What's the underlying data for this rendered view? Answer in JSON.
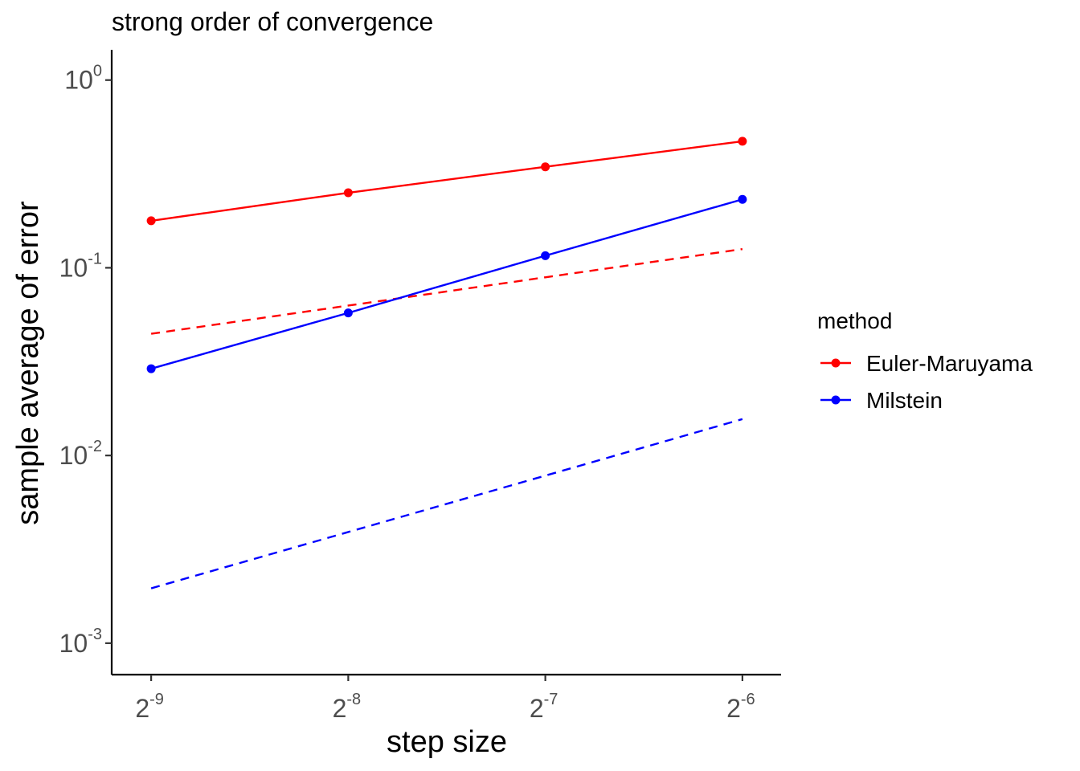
{
  "chart_data": {
    "type": "line",
    "title": "strong order of convergence",
    "xlabel": "step size",
    "ylabel": "sample average of error",
    "x_scale": "log2",
    "y_scale": "log10",
    "x": [
      0.001953125,
      0.00390625,
      0.0078125,
      0.015625
    ],
    "x_ticks": [
      {
        "base": "2",
        "exp": "-9"
      },
      {
        "base": "2",
        "exp": "-8"
      },
      {
        "base": "2",
        "exp": "-7"
      },
      {
        "base": "2",
        "exp": "-6"
      }
    ],
    "y_ticks": [
      {
        "base": "10",
        "exp": "-3",
        "value": 0.001
      },
      {
        "base": "10",
        "exp": "-2",
        "value": 0.01
      },
      {
        "base": "10",
        "exp": "-1",
        "value": 0.1
      },
      {
        "base": "10",
        "exp": "0",
        "value": 1
      }
    ],
    "ylim": [
      0.00068,
      1.45
    ],
    "xlim": [
      0.0017,
      0.0179
    ],
    "legend": {
      "title": "method",
      "position": "right"
    },
    "series": [
      {
        "name": "Euler-Maruyama",
        "color": "#ff0000",
        "values": [
          0.178,
          0.251,
          0.345,
          0.472
        ],
        "reference_values": [
          0.0445,
          0.0629,
          0.089,
          0.1258
        ]
      },
      {
        "name": "Milstein",
        "color": "#0000ff",
        "values": [
          0.029,
          0.0575,
          0.116,
          0.2315
        ],
        "reference_values": [
          0.00196,
          0.00391,
          0.00781,
          0.01563
        ]
      }
    ]
  }
}
